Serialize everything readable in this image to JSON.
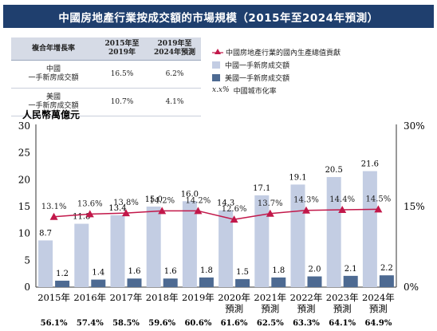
{
  "header": {
    "title": "中國房地產行業按成交額的市場規模（2015年至2024年預測）"
  },
  "cagr_table": {
    "headers": [
      "複合年增長率",
      "2015年至\n2019年",
      "2019年至\n2024年預測"
    ],
    "rows": [
      {
        "label": "中國\n一手新房成交額",
        "v1": "16.5%",
        "v2": "6.2%"
      },
      {
        "label": "美國\n一手新房成交額",
        "v1": "10.7%",
        "v2": "4.1%"
      }
    ]
  },
  "legend": {
    "line": "中國房地產行業的國內生產總值貢獻",
    "china": "中國一手新房成交額",
    "us": "美國一手新房成交額",
    "urban_marker": "x.x%",
    "urban": "中國城市化率"
  },
  "colors": {
    "china": "#c3cde3",
    "us": "#4d6a92",
    "line": "#c2184a",
    "title_bg": "#1f3f6e"
  },
  "chart_data": {
    "type": "bar",
    "ylabel": "人民幣萬億元",
    "ylim": [
      0,
      30
    ],
    "yticks": [
      "0",
      "5",
      "10",
      "15",
      "20",
      "25",
      "30"
    ],
    "y2lim": [
      0,
      30
    ],
    "y2ticks": [
      "0%",
      "15%",
      "30%"
    ],
    "categories": [
      "2015年",
      "2016年",
      "2017年",
      "2018年",
      "2019年",
      "2020年\n預測",
      "2021年\n預測",
      "2022年\n預測",
      "2023年\n預測",
      "2024年\n預測"
    ],
    "series": [
      {
        "name": "中國一手新房成交額",
        "values": [
          8.7,
          11.8,
          13.4,
          15.0,
          16.0,
          14.3,
          17.1,
          19.1,
          20.5,
          21.6
        ],
        "labels": [
          "8.7",
          "11.8",
          "13.4",
          "15.0",
          "16.0",
          "14.3",
          "17.1",
          "19.1",
          "20.5",
          "21.6"
        ]
      },
      {
        "name": "美國一手新房成交額",
        "values": [
          1.2,
          1.4,
          1.6,
          1.6,
          1.8,
          1.5,
          1.8,
          2.0,
          2.1,
          2.2
        ],
        "labels": [
          "1.2",
          "1.4",
          "1.6",
          "1.6",
          "1.8",
          "1.5",
          "1.8",
          "2.0",
          "2.1",
          "2.2"
        ]
      },
      {
        "name": "中國房地產行業的國內生產總值貢獻",
        "type": "line",
        "values": [
          13.1,
          13.6,
          13.8,
          14.2,
          14.2,
          12.6,
          13.7,
          14.3,
          14.4,
          14.5
        ],
        "labels": [
          "13.1%",
          "13.6%",
          "13.8%",
          "14.2%",
          "14.2%",
          "12.6%",
          "13.7%",
          "14.3%",
          "14.4%",
          "14.5%"
        ]
      }
    ],
    "urbanization": [
      "56.1%",
      "57.4%",
      "58.5%",
      "59.6%",
      "60.6%",
      "61.6%",
      "62.5%",
      "63.3%",
      "64.1%",
      "64.9%"
    ]
  }
}
